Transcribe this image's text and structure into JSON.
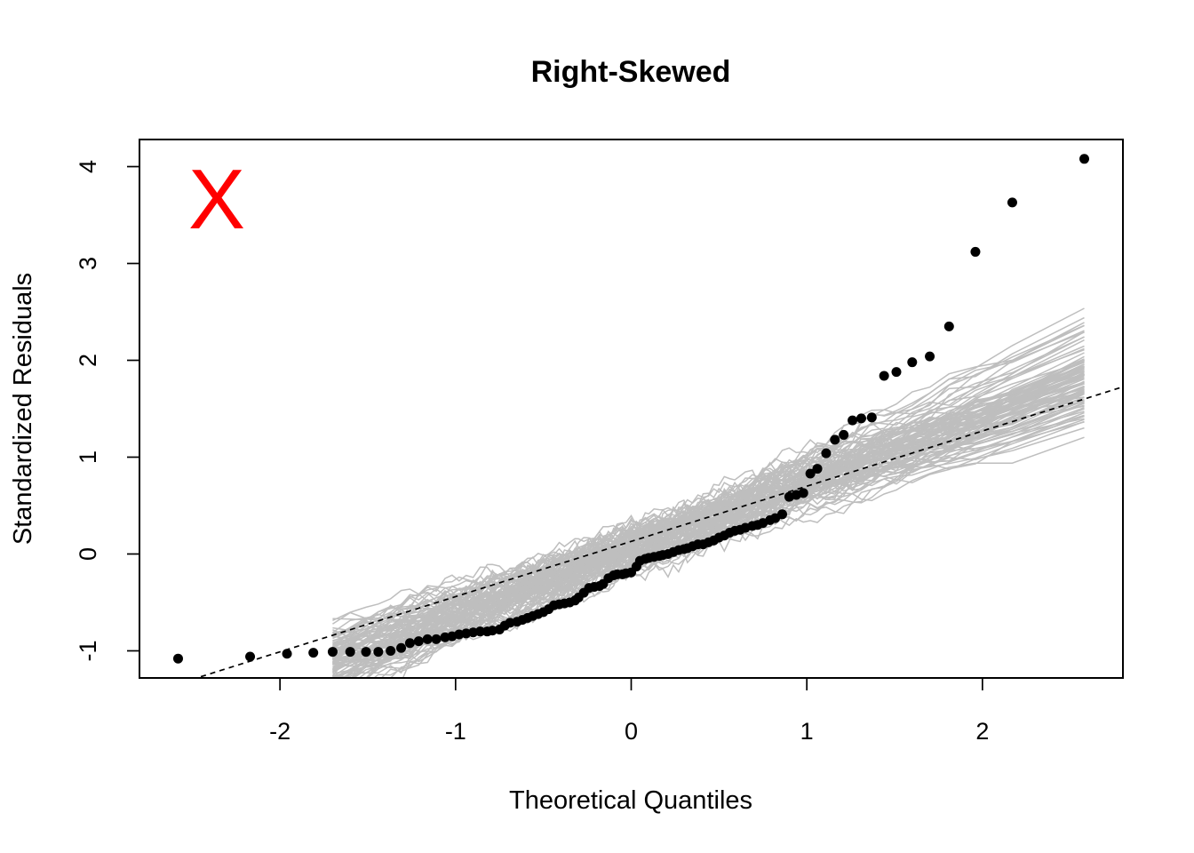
{
  "chart_data": {
    "type": "scatter",
    "title": "Right-Skewed",
    "xlabel": "Theoretical Quantiles",
    "ylabel": "Standardized Residuals",
    "xlim": [
      -2.8,
      2.8
    ],
    "ylim": [
      -1.28,
      4.28
    ],
    "x_ticks": [
      -2,
      -1,
      0,
      1,
      2
    ],
    "y_ticks": [
      -1,
      0,
      1,
      2,
      3,
      4
    ],
    "x_tick_labels": [
      "-2",
      "-1",
      "0",
      "1",
      "2"
    ],
    "y_tick_labels": [
      "-1",
      "0",
      "1",
      "2",
      "3",
      "4"
    ],
    "annotation": {
      "text": "X",
      "color": "#ff0000"
    },
    "colors": {
      "points": "#000000",
      "envelope": "#bebebe",
      "reference_line": "#000000",
      "annotation": "#ff0000"
    },
    "reference_line": {
      "intercept": 0.13,
      "slope": 0.57,
      "style": "dashed"
    },
    "envelope": {
      "count": 100,
      "description": "simulated normal QQ lines",
      "upper_end": 3.58,
      "lower_end": 1.74
    },
    "points": {
      "x": [
        -2.58,
        -2.17,
        -1.96,
        -1.81,
        -1.7,
        -1.6,
        -1.51,
        -1.44,
        -1.37,
        -1.31,
        -1.26,
        -1.21,
        -1.16,
        -1.11,
        -1.06,
        -1.02,
        -0.98,
        -0.94,
        -0.9,
        -0.86,
        -0.82,
        -0.79,
        -0.75,
        -0.72,
        -0.69,
        -0.65,
        -0.62,
        -0.59,
        -0.56,
        -0.53,
        -0.5,
        -0.47,
        -0.44,
        -0.41,
        -0.38,
        -0.35,
        -0.32,
        -0.3,
        -0.27,
        -0.24,
        -0.21,
        -0.18,
        -0.16,
        -0.13,
        -0.1,
        -0.08,
        -0.05,
        -0.03,
        0.0,
        0.03,
        0.05,
        0.08,
        0.1,
        0.13,
        0.16,
        0.18,
        0.21,
        0.24,
        0.27,
        0.3,
        0.32,
        0.35,
        0.38,
        0.41,
        0.44,
        0.47,
        0.5,
        0.53,
        0.56,
        0.59,
        0.62,
        0.65,
        0.69,
        0.72,
        0.75,
        0.79,
        0.82,
        0.86,
        0.9,
        0.94,
        0.98,
        1.02,
        1.06,
        1.11,
        1.16,
        1.21,
        1.26,
        1.31,
        1.37,
        1.44,
        1.51,
        1.6,
        1.7,
        1.81,
        1.96,
        2.17,
        2.58
      ],
      "y": [
        -1.08,
        -1.06,
        -1.03,
        -1.02,
        -1.01,
        -1.01,
        -1.01,
        -1.01,
        -1.0,
        -0.97,
        -0.92,
        -0.9,
        -0.88,
        -0.88,
        -0.86,
        -0.85,
        -0.83,
        -0.82,
        -0.81,
        -0.8,
        -0.8,
        -0.79,
        -0.78,
        -0.74,
        -0.71,
        -0.7,
        -0.68,
        -0.66,
        -0.64,
        -0.62,
        -0.6,
        -0.57,
        -0.53,
        -0.52,
        -0.51,
        -0.5,
        -0.48,
        -0.45,
        -0.4,
        -0.35,
        -0.34,
        -0.33,
        -0.31,
        -0.25,
        -0.22,
        -0.21,
        -0.21,
        -0.2,
        -0.19,
        -0.13,
        -0.07,
        -0.05,
        -0.04,
        -0.03,
        -0.02,
        -0.01,
        0.0,
        0.02,
        0.04,
        0.05,
        0.06,
        0.08,
        0.1,
        0.1,
        0.12,
        0.14,
        0.17,
        0.19,
        0.22,
        0.24,
        0.25,
        0.27,
        0.29,
        0.3,
        0.32,
        0.35,
        0.37,
        0.41,
        0.59,
        0.61,
        0.63,
        0.83,
        0.88,
        1.04,
        1.18,
        1.23,
        1.38,
        1.4,
        1.41,
        1.84,
        1.88,
        1.98,
        2.04,
        2.35,
        3.12,
        3.63,
        4.08
      ]
    }
  }
}
